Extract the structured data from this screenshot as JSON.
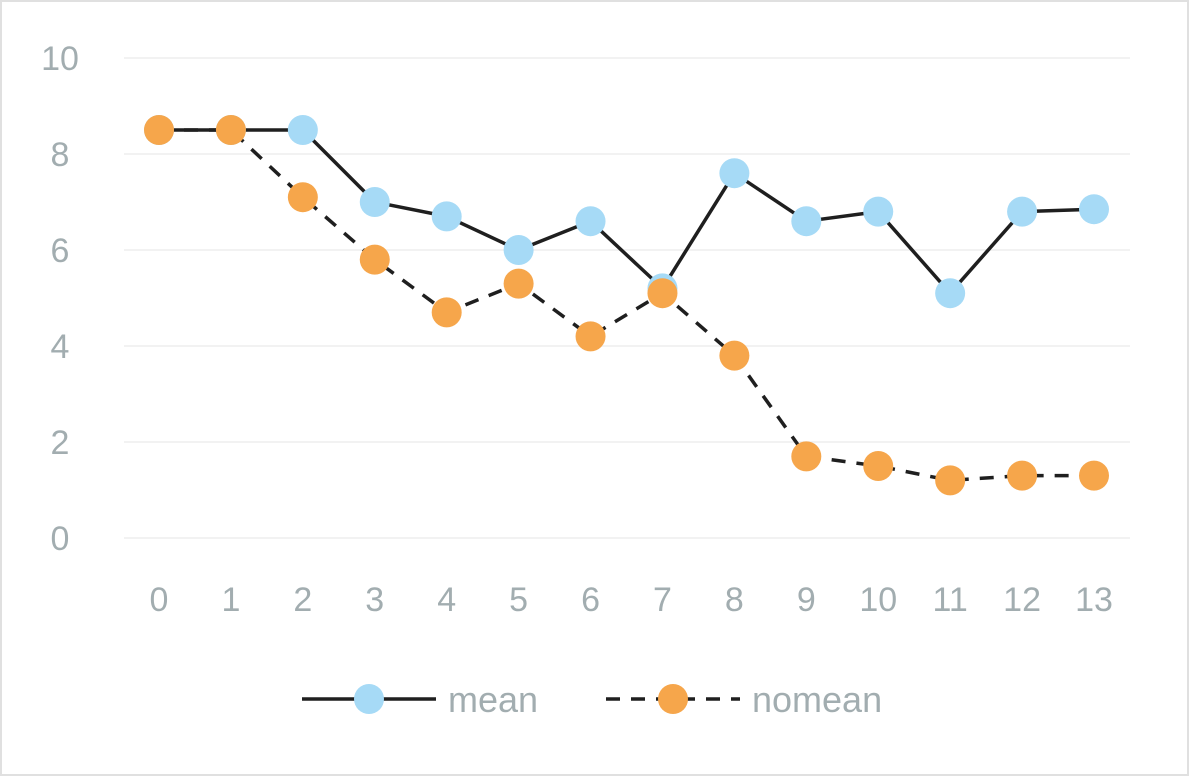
{
  "chart_data": {
    "type": "line",
    "x": [
      0,
      1,
      2,
      3,
      4,
      5,
      6,
      7,
      8,
      9,
      10,
      11,
      12,
      13
    ],
    "series": [
      {
        "name": "mean",
        "values": [
          8.5,
          8.5,
          8.5,
          7.0,
          6.7,
          6.0,
          6.6,
          5.2,
          7.6,
          6.6,
          6.8,
          5.1,
          6.8,
          6.85
        ],
        "line_style": "solid",
        "line_color": "#1f1f1f",
        "marker_color": "#a6daf6"
      },
      {
        "name": "nomean",
        "values": [
          8.5,
          8.5,
          7.1,
          5.8,
          4.7,
          5.3,
          4.2,
          5.1,
          3.8,
          1.7,
          1.5,
          1.2,
          1.3,
          1.3
        ],
        "line_style": "dashed",
        "line_color": "#1f1f1f",
        "marker_color": "#f6a64b"
      }
    ],
    "y_ticks": [
      "0",
      "2",
      "4",
      "6",
      "8",
      "10"
    ],
    "x_ticks": [
      "0",
      "1",
      "2",
      "3",
      "4",
      "5",
      "6",
      "7",
      "8",
      "9",
      "10",
      "11",
      "12",
      "13"
    ],
    "ylim": [
      0,
      10
    ],
    "xlim": [
      0,
      13
    ],
    "grid": true,
    "legend_position": "bottom-center",
    "title": "",
    "xlabel": "",
    "ylabel": ""
  }
}
